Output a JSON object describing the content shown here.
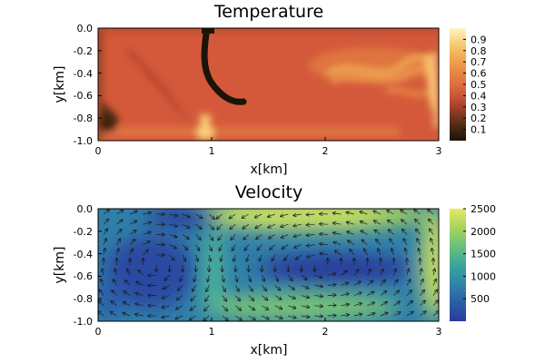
{
  "chart_data": [
    {
      "type": "heatmap",
      "title": "Temperature",
      "xlabel": "x[km]",
      "ylabel": "y[km]",
      "xlim": [
        0,
        3
      ],
      "ylim": [
        -1,
        0
      ],
      "x_ticks": [
        "0",
        "1",
        "2",
        "3"
      ],
      "y_ticks": [
        "0.0",
        "-0.2",
        "-0.4",
        "-0.6",
        "-0.8",
        "-1.0"
      ],
      "colorbar": {
        "range": [
          0.0,
          1.0
        ],
        "ticks": [
          "0.1",
          "0.2",
          "0.3",
          "0.4",
          "0.5",
          "0.6",
          "0.7",
          "0.8",
          "0.9"
        ],
        "colormap": [
          "#1a1309",
          "#4a2a14",
          "#8a3a22",
          "#c5503a",
          "#dd6e3f",
          "#e88c45",
          "#f0ad53",
          "#f7d07a",
          "#fff6c7"
        ]
      },
      "features": {
        "background_value": 0.5,
        "cold_plume": "descending from top near x=0.95 curving right to x=1.3, y=-0.65",
        "hot_upwellings": "near x=0.95 bottom and x=2.0 to 3.0 at y=-0.25 to -0.6",
        "cold_corner": "bottom-left near x=0.1, y=-0.85"
      }
    },
    {
      "type": "heatmap",
      "title": "Velocity",
      "xlabel": "x[km]",
      "ylabel": "y[km]",
      "xlim": [
        0,
        3
      ],
      "ylim": [
        -1,
        0
      ],
      "x_ticks": [
        "0",
        "1",
        "2",
        "3"
      ],
      "y_ticks": [
        "0.0",
        "-0.2",
        "-0.4",
        "-0.6",
        "-0.8",
        "-1.0"
      ],
      "colorbar": {
        "range": [
          0,
          2500
        ],
        "ticks": [
          "500",
          "1000",
          "1500",
          "2000",
          "2500"
        ],
        "colormap": [
          "#2a3b9b",
          "#2a5fa8",
          "#2f84a8",
          "#3aa59a",
          "#69c07a",
          "#a9d45a",
          "#e4e865"
        ]
      },
      "overlay": "quiver arrows showing two convection cells",
      "features": {
        "fast_region": "top edge x=1.0 to 2.8 and right edge x=2.9 to 3.0",
        "slow_region": "left cell interior and centre of right cell"
      }
    }
  ]
}
